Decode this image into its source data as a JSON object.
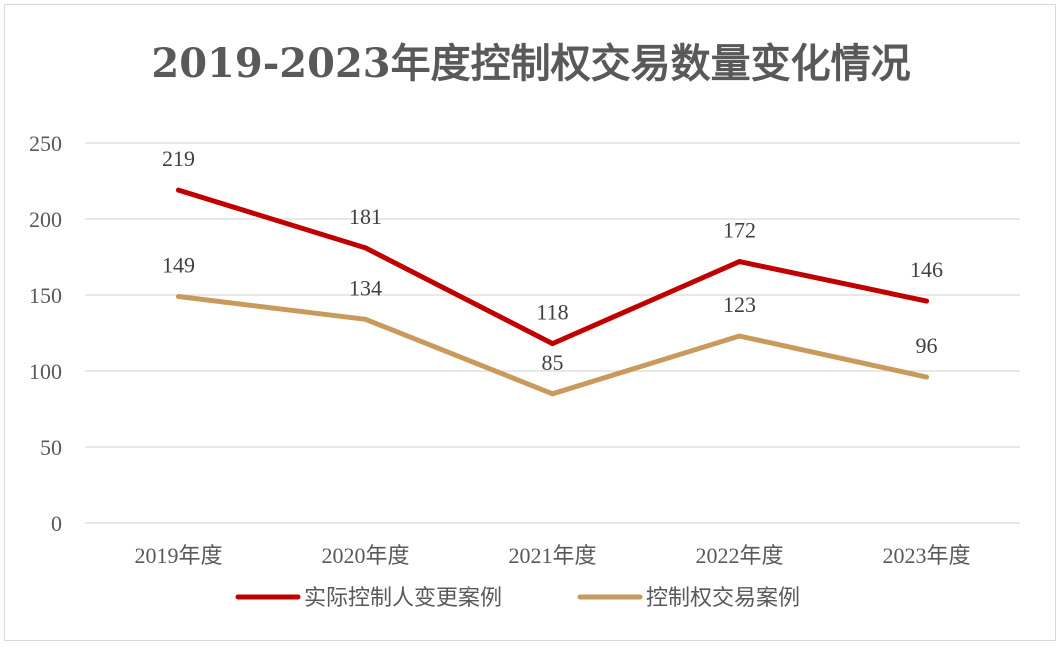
{
  "chart_data": {
    "type": "line",
    "title": "2019-2023年度控制权交易数量变化情况",
    "categories": [
      "2019年度",
      "2020年度",
      "2021年度",
      "2022年度",
      "2023年度"
    ],
    "series": [
      {
        "name": "实际控制人变更案例",
        "values": [
          219,
          181,
          118,
          172,
          146
        ],
        "color": "#C00000"
      },
      {
        "name": "控制权交易案例",
        "values": [
          149,
          134,
          85,
          123,
          96
        ],
        "color": "#C89B5C"
      }
    ],
    "ylim": [
      0,
      250
    ],
    "yticks": [
      "0",
      "50",
      "100",
      "150",
      "200",
      "250"
    ],
    "grid": true,
    "legend": "bottom"
  },
  "colors": {
    "gridline": "#d9d9d9",
    "text": "#595959"
  }
}
